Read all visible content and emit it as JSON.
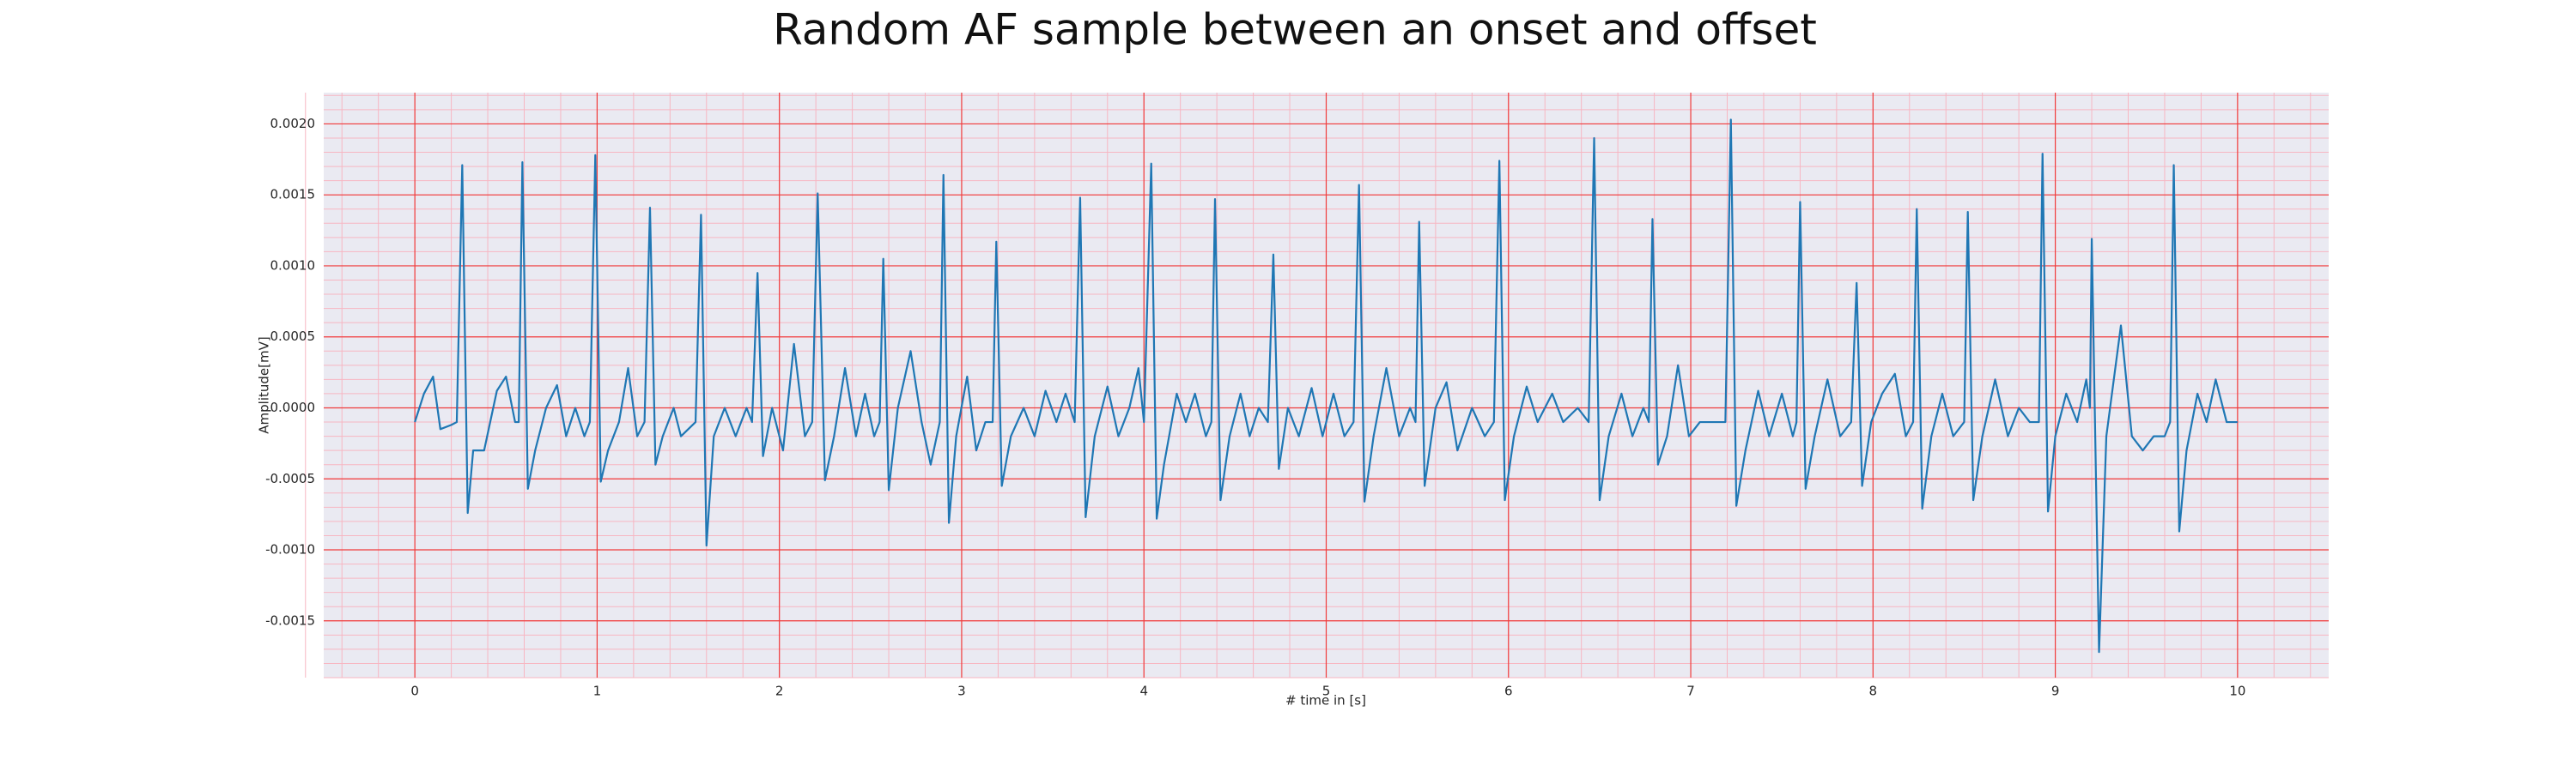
{
  "chart_data": {
    "type": "line",
    "title": "Random AF sample between an onset and offset",
    "xlabel": "# time in [s]",
    "ylabel": "Amplitude[mV]",
    "xlim": [
      -0.5,
      10.5
    ],
    "ylim": [
      -0.0019,
      0.00222
    ],
    "xticks": [
      0,
      1,
      2,
      3,
      4,
      5,
      6,
      7,
      8,
      9,
      10
    ],
    "yticks": [
      {
        "value": -0.0015,
        "label": "-0.0015"
      },
      {
        "value": -0.001,
        "label": "-0.0010"
      },
      {
        "value": -0.0005,
        "label": "-0.0005"
      },
      {
        "value": 0,
        "label": "0.0000"
      },
      {
        "value": 0.0005,
        "label": "0.0005"
      },
      {
        "value": 0.001,
        "label": "0.0010"
      },
      {
        "value": 0.0015,
        "label": "0.0015"
      },
      {
        "value": 0.002,
        "label": "0.0020"
      }
    ],
    "grid": true,
    "minor_grid": true,
    "color": "#1f77b4",
    "x": [
      0,
      0.05,
      0.1,
      0.14,
      0.2,
      0.23,
      0.26,
      0.29,
      0.32,
      0.38,
      0.45,
      0.5,
      0.55,
      0.57,
      0.59,
      0.62,
      0.66,
      0.72,
      0.78,
      0.83,
      0.88,
      0.93,
      0.96,
      0.99,
      1.02,
      1.06,
      1.12,
      1.17,
      1.22,
      1.26,
      1.29,
      1.32,
      1.36,
      1.42,
      1.46,
      1.54,
      1.57,
      1.6,
      1.64,
      1.7,
      1.76,
      1.82,
      1.85,
      1.88,
      1.91,
      1.96,
      2.02,
      2.08,
      2.14,
      2.18,
      2.21,
      2.25,
      2.3,
      2.36,
      2.42,
      2.47,
      2.52,
      2.55,
      2.57,
      2.6,
      2.65,
      2.72,
      2.78,
      2.83,
      2.88,
      2.9,
      2.93,
      2.97,
      3.03,
      3.08,
      3.13,
      3.17,
      3.19,
      3.22,
      3.27,
      3.34,
      3.4,
      3.46,
      3.52,
      3.57,
      3.62,
      3.65,
      3.68,
      3.73,
      3.8,
      3.86,
      3.92,
      3.97,
      4.0,
      4.04,
      4.07,
      4.11,
      4.18,
      4.23,
      4.28,
      4.34,
      4.37,
      4.39,
      4.42,
      4.47,
      4.53,
      4.58,
      4.63,
      4.68,
      4.71,
      4.74,
      4.79,
      4.85,
      4.92,
      4.98,
      5.04,
      5.1,
      5.15,
      5.18,
      5.21,
      5.26,
      5.33,
      5.4,
      5.46,
      5.49,
      5.51,
      5.54,
      5.6,
      5.66,
      5.72,
      5.8,
      5.87,
      5.92,
      5.95,
      5.98,
      6.03,
      6.1,
      6.16,
      6.24,
      6.3,
      6.38,
      6.44,
      6.47,
      6.5,
      6.55,
      6.62,
      6.68,
      6.74,
      6.77,
      6.79,
      6.82,
      6.87,
      6.93,
      6.99,
      7.05,
      7.19,
      7.22,
      7.25,
      7.3,
      7.37,
      7.43,
      7.5,
      7.56,
      7.58,
      7.6,
      7.63,
      7.68,
      7.75,
      7.82,
      7.88,
      7.91,
      7.94,
      7.99,
      8.05,
      8.12,
      8.18,
      8.22,
      8.24,
      8.27,
      8.32,
      8.38,
      8.44,
      8.5,
      8.52,
      8.55,
      8.6,
      8.67,
      8.74,
      8.8,
      8.86,
      8.91,
      8.93,
      8.96,
      9.0,
      9.06,
      9.12,
      9.17,
      9.19,
      9.2,
      9.24,
      9.28,
      9.36,
      9.42,
      9.48,
      9.54,
      9.6,
      9.63,
      9.65,
      9.68,
      9.72,
      9.78,
      9.83,
      9.88,
      9.94,
      10.0
    ],
    "values": [
      -0.0001,
      0.0001,
      0.00022,
      -0.00015,
      -0.00012,
      -0.0001,
      0.00171,
      -0.00074,
      -0.0003,
      -0.0003,
      0.00012,
      0.00022,
      -0.0001,
      -0.0001,
      0.00173,
      -0.00057,
      -0.0003,
      0,
      0.00016,
      -0.0002,
      0,
      -0.0002,
      -0.0001,
      0.00178,
      -0.00052,
      -0.0003,
      -0.0001,
      0.00028,
      -0.0002,
      -0.0001,
      0.00141,
      -0.0004,
      -0.0002,
      0,
      -0.0002,
      -0.0001,
      0.00136,
      -0.00097,
      -0.0002,
      0,
      -0.0002,
      0,
      -0.0001,
      0.00095,
      -0.00034,
      0,
      -0.0003,
      0.00045,
      -0.0002,
      -0.0001,
      0.00151,
      -0.00051,
      -0.0002,
      0.00028,
      -0.0002,
      0.0001,
      -0.0002,
      -0.0001,
      0.00105,
      -0.00058,
      0,
      0.0004,
      -0.0001,
      -0.0004,
      -0.0001,
      0.00164,
      -0.00081,
      -0.0002,
      0.00022,
      -0.0003,
      -0.0001,
      -0.0001,
      0.00117,
      -0.00055,
      -0.0002,
      0,
      -0.0002,
      0.00012,
      -0.0001,
      0.0001,
      -0.0001,
      0.00148,
      -0.00077,
      -0.0002,
      0.00015,
      -0.0002,
      0,
      0.00028,
      -0.0001,
      0.00172,
      -0.00078,
      -0.0004,
      0.0001,
      -0.0001,
      0.0001,
      -0.0002,
      -0.0001,
      0.00147,
      -0.00065,
      -0.0002,
      0.0001,
      -0.0002,
      0,
      -0.0001,
      0.00108,
      -0.00043,
      0,
      -0.0002,
      0.00014,
      -0.0002,
      0.0001,
      -0.0002,
      -0.0001,
      0.00157,
      -0.00066,
      -0.0002,
      0.00028,
      -0.0002,
      0,
      -0.0001,
      0.00131,
      -0.00055,
      0,
      0.00018,
      -0.0003,
      0,
      -0.0002,
      -0.0001,
      0.00174,
      -0.00065,
      -0.0002,
      0.00015,
      -0.0001,
      0.0001,
      -0.0001,
      0,
      -0.0001,
      0.0019,
      -0.00065,
      -0.0002,
      0.0001,
      -0.0002,
      0,
      -0.0001,
      0.00133,
      -0.0004,
      -0.0002,
      0.0003,
      -0.0002,
      -0.0001,
      -0.0001,
      0.00203,
      -0.00069,
      -0.0003,
      0.00012,
      -0.0002,
      0.0001,
      -0.0002,
      -0.0001,
      0.00145,
      -0.00057,
      -0.0002,
      0.0002,
      -0.0002,
      -0.0001,
      0.00088,
      -0.00055,
      -0.0001,
      0.0001,
      0.00024,
      -0.0002,
      -0.0001,
      0.0014,
      -0.00071,
      -0.0002,
      0.0001,
      -0.0002,
      -0.0001,
      0.00138,
      -0.00065,
      -0.0002,
      0.0002,
      -0.0002,
      0,
      -0.0001,
      -0.0001,
      0.00179,
      -0.00073,
      -0.0002,
      0.0001,
      -0.0001,
      0.0002,
      0,
      0.00119,
      -0.00172,
      -0.0002,
      0.00058,
      -0.0002,
      -0.0003,
      -0.0002,
      -0.0002,
      -0.0001,
      0.00171,
      -0.00087,
      -0.0003,
      0.0001,
      -0.0001,
      0.0002,
      -0.0001,
      -0.0001
    ]
  }
}
